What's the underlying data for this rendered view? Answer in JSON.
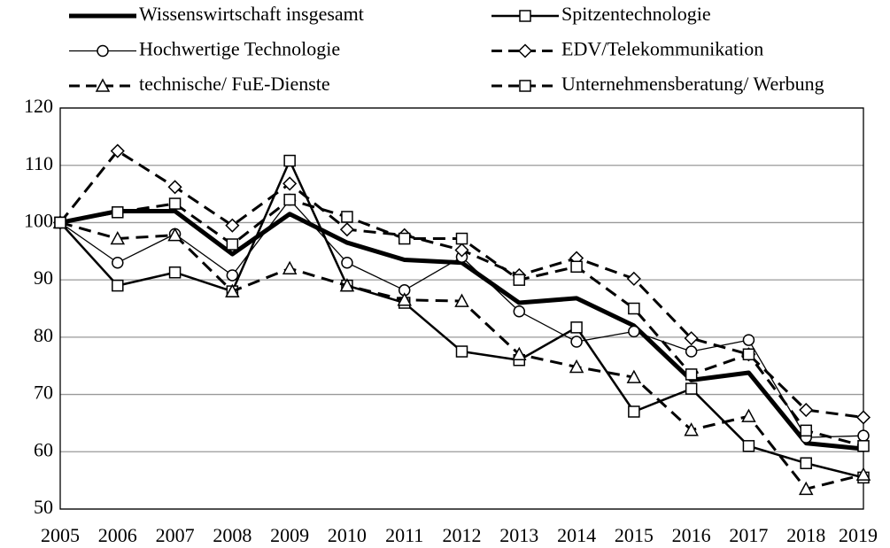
{
  "chart_data": {
    "type": "line",
    "categories": [
      "2005",
      "2006",
      "2007",
      "2008",
      "2009",
      "2010",
      "2011",
      "2012",
      "2013",
      "2014",
      "2015",
      "2016",
      "2017",
      "2018",
      "2019"
    ],
    "ylim": [
      50,
      120
    ],
    "yticks": [
      50,
      60,
      70,
      80,
      90,
      100,
      110,
      120
    ],
    "grid": true,
    "series": [
      {
        "name": "Wissenswirtschaft insgesamt",
        "color": "#000000",
        "line_width": 5,
        "dash": "solid",
        "marker": "none",
        "values": [
          100,
          102,
          102,
          94.5,
          101.5,
          96.5,
          93.5,
          93,
          86,
          86.8,
          82,
          72.5,
          73.8,
          61.5,
          60.5
        ]
      },
      {
        "name": "Spitzentechnologie",
        "color": "#000000",
        "line_width": 2.5,
        "dash": "solid",
        "marker": "square",
        "values": [
          100,
          89,
          91.3,
          88,
          110.8,
          89,
          86,
          77.5,
          76,
          81.7,
          67,
          71,
          61,
          58,
          55.5
        ]
      },
      {
        "name": "Hochwertige Technologie",
        "color": "#000000",
        "line_width": 1.3,
        "dash": "solid",
        "marker": "circle",
        "values": [
          100,
          93,
          98,
          90.8,
          104,
          93,
          88.2,
          94,
          84.5,
          79.2,
          81,
          77.5,
          79.5,
          62.5,
          62.8
        ]
      },
      {
        "name": "EDV/Telekommunikation",
        "color": "#000000",
        "line_width": 3,
        "dash": "dashed",
        "marker": "diamond",
        "values": [
          100,
          112.5,
          106.2,
          99.5,
          106.8,
          98.8,
          97.8,
          95.2,
          90.8,
          93.8,
          90.2,
          79.8,
          77,
          67.3,
          66
        ]
      },
      {
        "name": "technische/ FuE-Dienste",
        "color": "#000000",
        "line_width": 3,
        "dash": "dashed",
        "marker": "triangle",
        "values": [
          100,
          97.2,
          97.8,
          88,
          92,
          89,
          86.5,
          86.3,
          77,
          74.8,
          73,
          63.8,
          66.2,
          53.5,
          56
        ]
      },
      {
        "name": "Unternehmensberatung/ Werbung",
        "color": "#000000",
        "line_width": 3,
        "dash": "dashed",
        "marker": "square",
        "values": [
          100,
          101.8,
          103.3,
          96.2,
          104,
          101,
          97.2,
          97.2,
          90,
          92.3,
          85,
          73.5,
          77,
          63.7,
          61
        ]
      }
    ]
  }
}
